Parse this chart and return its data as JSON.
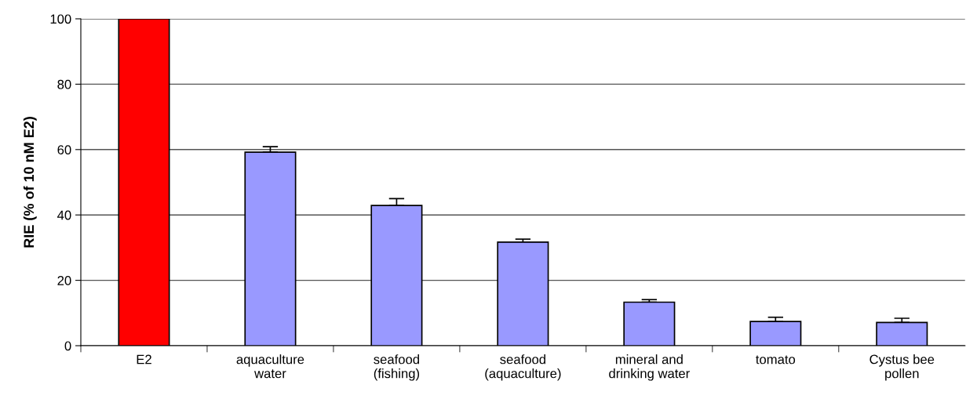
{
  "chart_data": {
    "type": "bar",
    "ylabel": "RIE (% of 10 nM E2)",
    "categories": [
      "E2",
      "aquaculture\nwater",
      "seafood\n(fishing)",
      "seafood\n(aquaculture)",
      "mineral and\ndrinking water",
      "tomato",
      "Cystus bee\npollen"
    ],
    "values": [
      100,
      59.2,
      42.9,
      31.7,
      13.3,
      7.4,
      7.1
    ],
    "colors": [
      "#ff0000",
      "#9999ff",
      "#9999ff",
      "#9999ff",
      "#9999ff",
      "#9999ff",
      "#9999ff"
    ],
    "errors": [
      null,
      [
        59.2,
        60.9
      ],
      [
        42.9,
        45.0
      ],
      [
        31.7,
        32.6
      ],
      [
        13.3,
        14.1
      ],
      [
        7.4,
        8.7
      ],
      [
        7.1,
        8.4
      ]
    ],
    "ylim": [
      0,
      100
    ],
    "yticks": [
      0,
      20,
      40,
      60,
      80,
      100
    ],
    "grid": "y"
  }
}
